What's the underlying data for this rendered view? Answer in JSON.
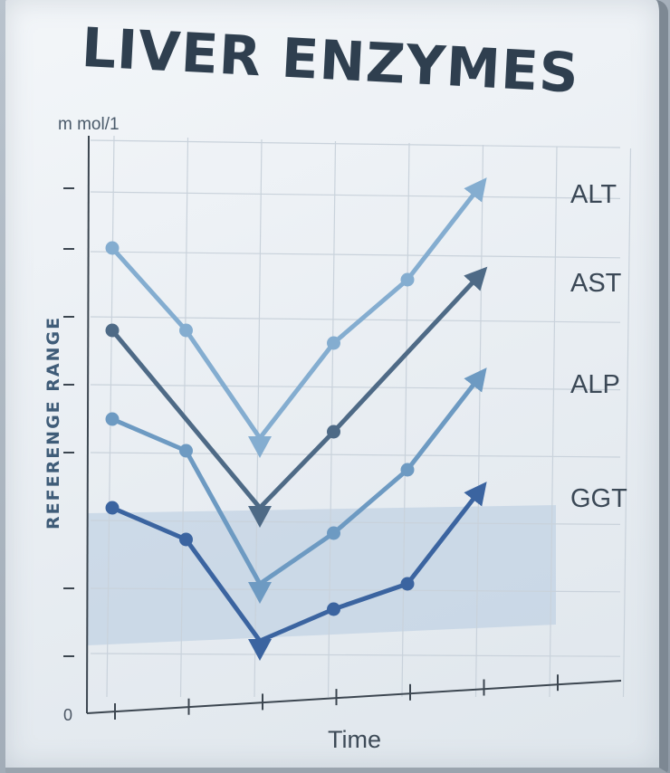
{
  "chart_data": {
    "type": "line",
    "title": "LIVER ENZYMES",
    "unit_label": "m mol/1",
    "ylabel": "REFERENGE RANGE",
    "xlabel": "Time",
    "y_tick_labels": [
      "0"
    ],
    "grid": true,
    "shaded_reference_range": true,
    "legend_placement": "right, at line ends",
    "x": [
      1,
      2,
      3,
      4,
      5,
      6
    ],
    "ylim": [
      0,
      10
    ],
    "series": [
      {
        "name": "ALT",
        "color": "#84add0",
        "values": [
          7.3,
          6.0,
          4.3,
          5.8,
          6.8,
          8.3
        ]
      },
      {
        "name": "AST",
        "color": "#4e6a86",
        "values": [
          6.0,
          null,
          3.2,
          4.4,
          null,
          6.9
        ]
      },
      {
        "name": "ALP",
        "color": "#6d9ac2",
        "values": [
          4.6,
          4.1,
          2.0,
          2.8,
          3.8,
          5.3
        ]
      },
      {
        "name": "GGT",
        "color": "#3b64a0",
        "values": [
          3.2,
          2.7,
          1.1,
          1.6,
          2.0,
          3.5
        ]
      }
    ]
  }
}
